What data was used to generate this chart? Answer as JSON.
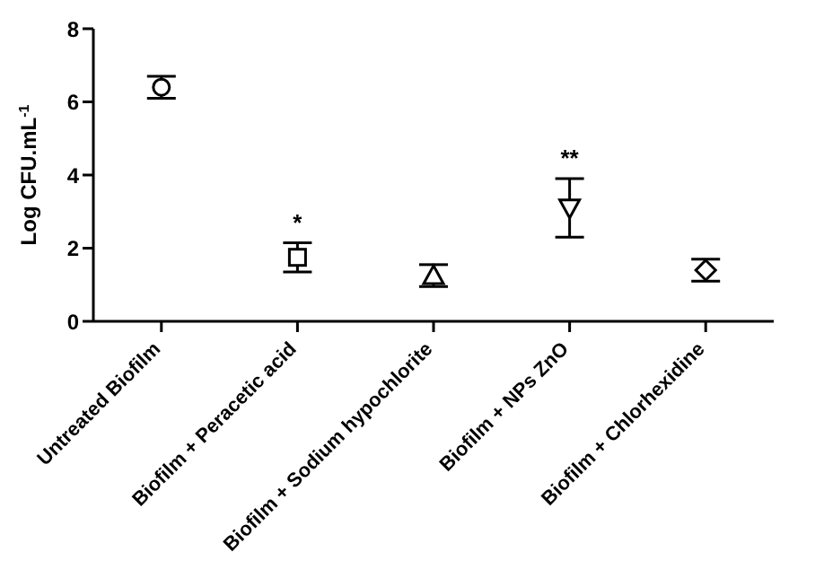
{
  "chart_data": {
    "type": "scatter",
    "ylabel": "Log CFU.mL$^{-1}$",
    "categories": [
      "Untreated Biofilm",
      "Biofilm + Peracetic acid",
      "Biofilm + Sodium hypochlorite",
      "Biofilm + NPs ZnO",
      "Biofilm + Chlorhexidine"
    ],
    "ylim": [
      0,
      8
    ],
    "yticks": [
      0,
      2,
      4,
      6,
      8
    ],
    "grid": false,
    "legend": false,
    "series": [
      {
        "color": "#000000",
        "marker": "circle",
        "values": [
          6.4,
          null,
          null,
          null,
          null
        ],
        "errors": [
          0.3,
          null,
          null,
          null,
          null
        ]
      },
      {
        "color": "#000000",
        "marker": "square",
        "values": [
          null,
          1.75,
          null,
          null,
          null
        ],
        "errors": [
          null,
          0.4,
          null,
          null,
          null
        ],
        "value_labels": [
          null,
          "*",
          null,
          null,
          null
        ]
      },
      {
        "color": "#000000",
        "marker": "triangle",
        "values": [
          null,
          null,
          1.25,
          null,
          null
        ],
        "errors": [
          null,
          null,
          0.3,
          null,
          null
        ]
      },
      {
        "color": "#000000",
        "marker": "triangle-down",
        "values": [
          null,
          null,
          null,
          3.1,
          null
        ],
        "errors": [
          null,
          null,
          null,
          0.8,
          null
        ],
        "value_labels": [
          null,
          null,
          null,
          "**",
          null
        ]
      },
      {
        "color": "#000000",
        "marker": "diamond",
        "values": [
          null,
          null,
          null,
          null,
          1.4
        ],
        "errors": [
          null,
          null,
          null,
          null,
          0.3
        ]
      }
    ]
  }
}
